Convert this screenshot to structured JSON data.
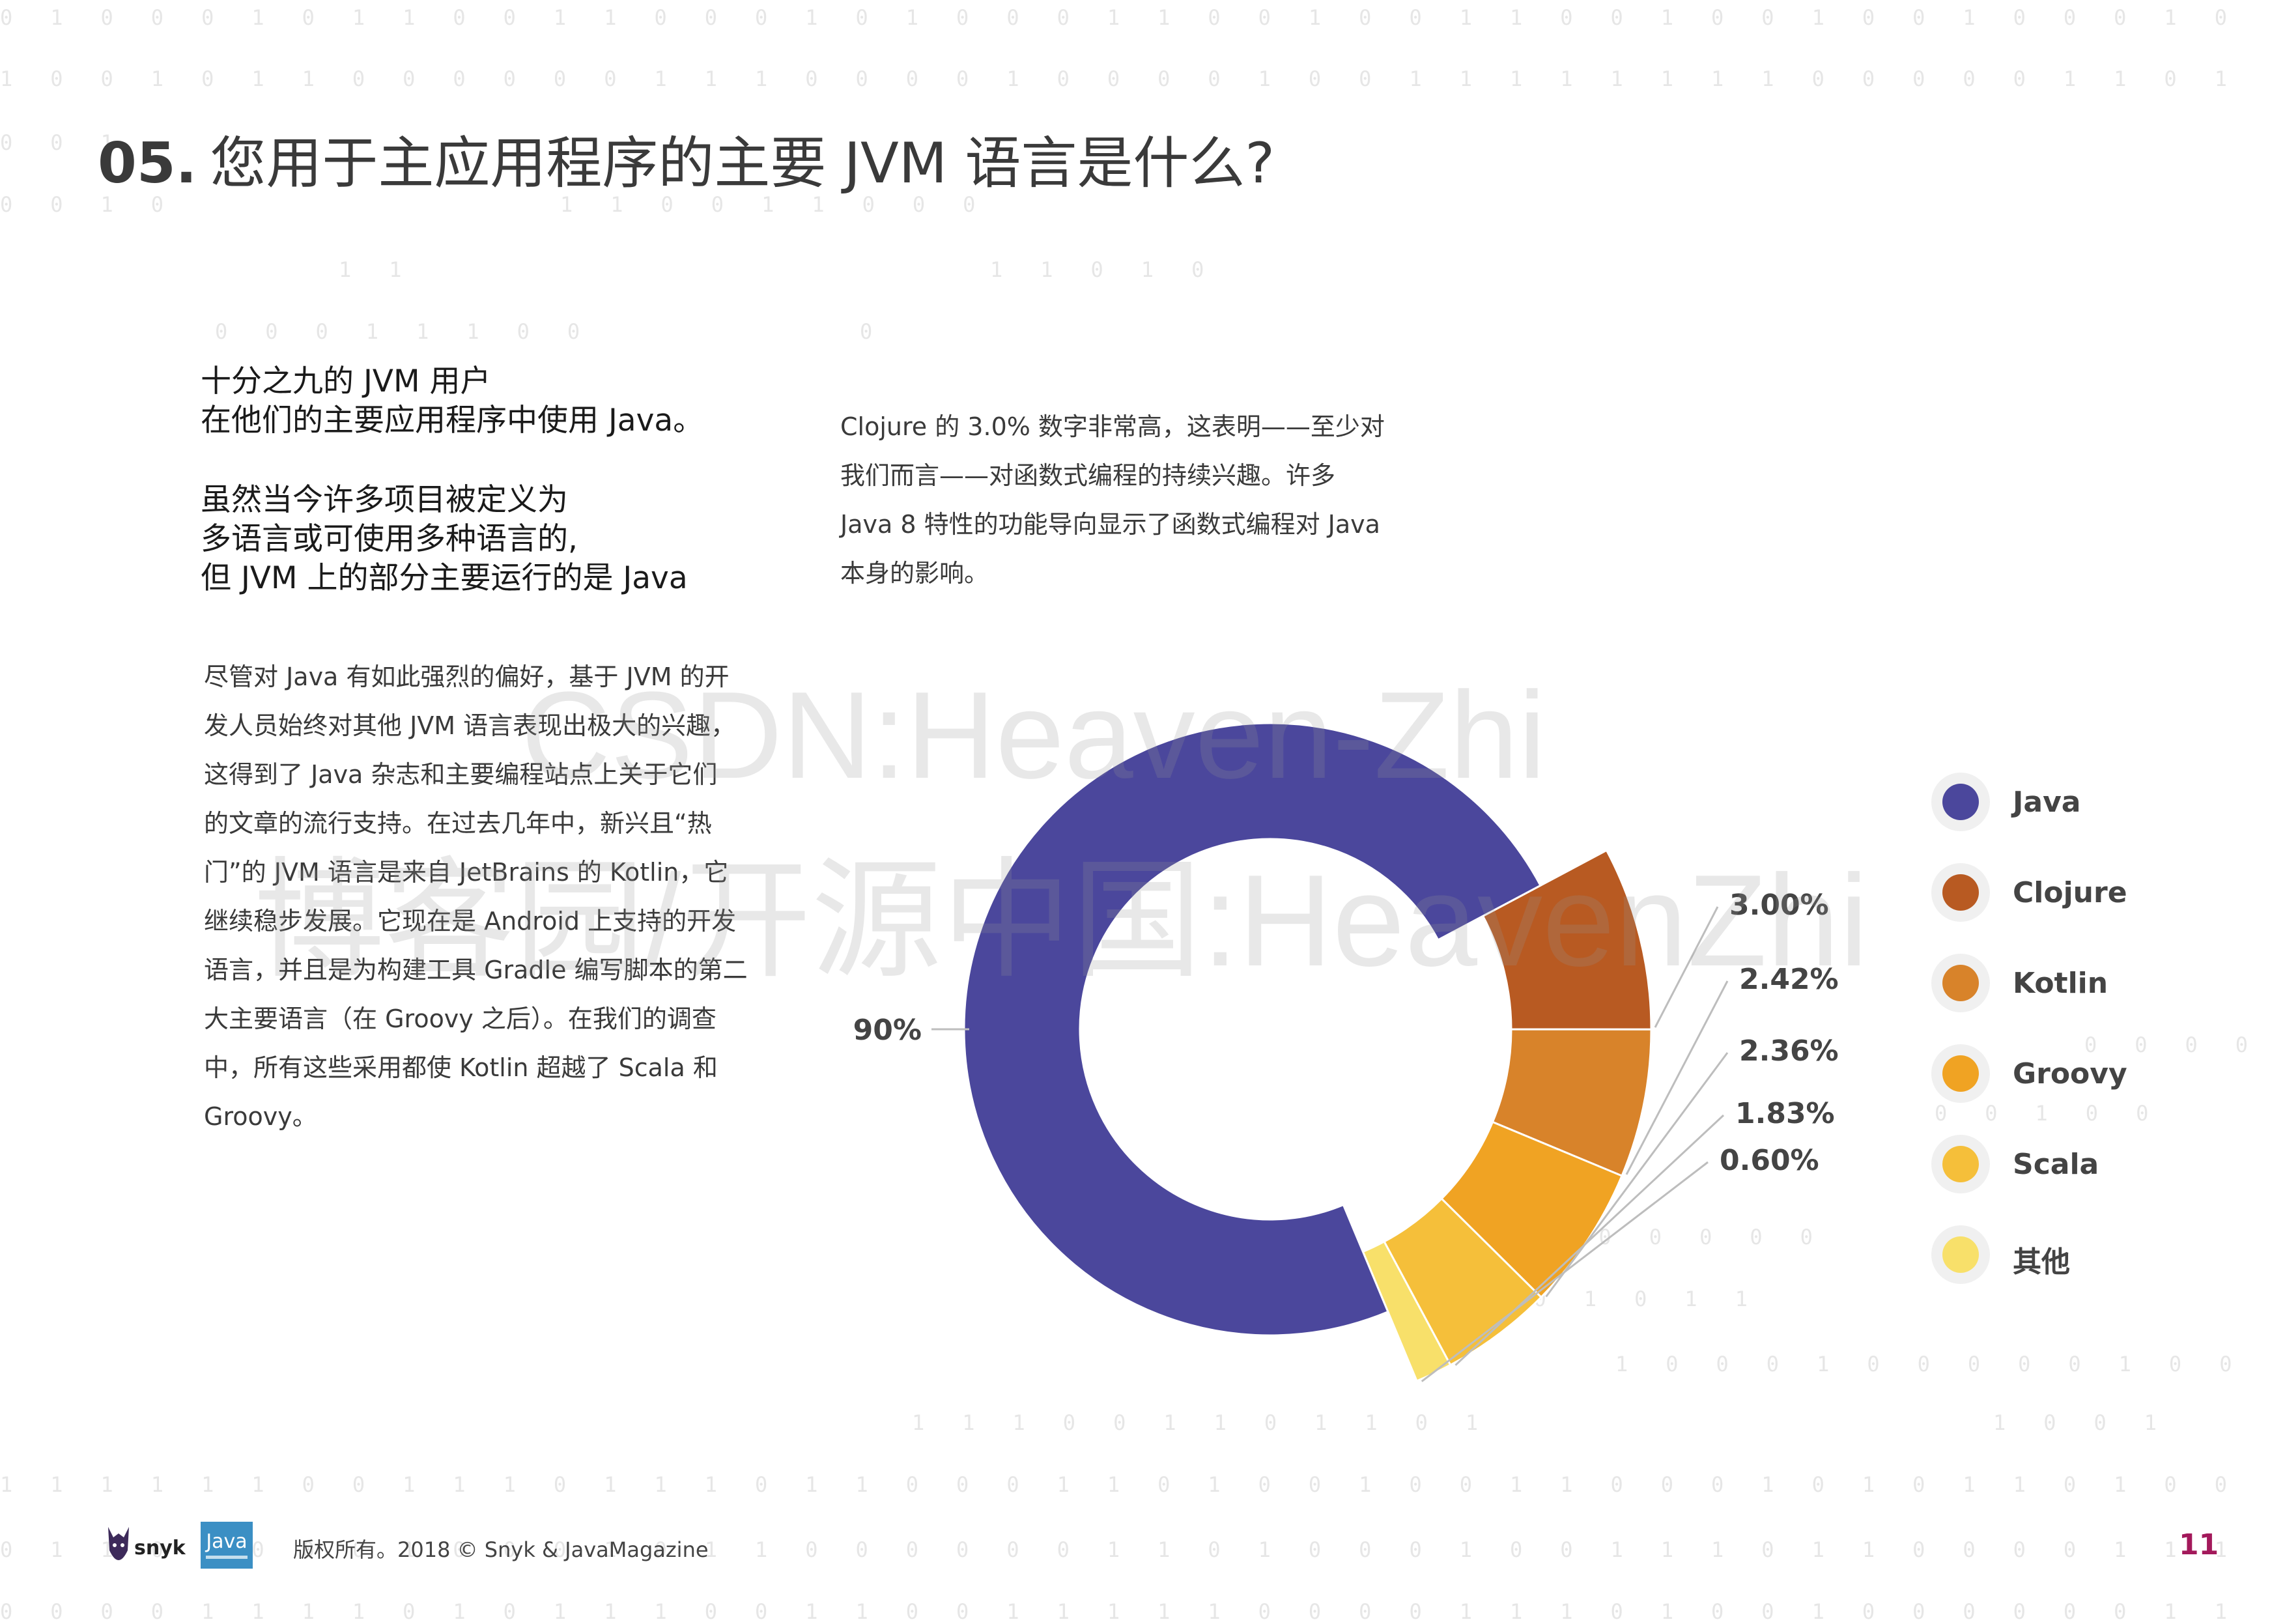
{
  "header": {
    "number": "05.",
    "title": "您用于主应用程序的主要 JVM 语言是什么?"
  },
  "lead": {
    "lines": [
      "十分之九的 JVM 用户",
      "在他们的主要应用程序中使用 Java。",
      "虽然当今许多项目被定义为",
      "多语言或可使用多种语言的,",
      "但 JVM 上的部分主要运行的是 Java"
    ]
  },
  "left_body": {
    "lines": [
      "尽管对 Java 有如此强烈的偏好，基于 JVM 的开",
      "发人员始终对其他 JVM 语言表现出极大的兴趣，",
      "这得到了 Java 杂志和主要编程站点上关于它们",
      "的文章的流行支持。在过去几年中，新兴且“热",
      "门”的 JVM 语言是来自 JetBrains 的 Kotlin，它",
      "继续稳步发展。它现在是 Android 上支持的开发",
      "语言，并且是为构建工具 Gradle 编写脚本的第二",
      "大主要语言（在 Groovy 之后）。在我们的调查",
      "中，所有这些采用都使 Kotlin 超越了 Scala 和",
      "Groovy。"
    ]
  },
  "right_body": {
    "lines": [
      "Clojure 的 3.0% 数字非常高，这表明——至少对",
      "我们而言——对函数式编程的持续兴趣。许多",
      "Java 8 特性的功能导向显示了函数式编程对 Java",
      "本身的影响。"
    ]
  },
  "chart_data": {
    "type": "pie",
    "style": "donut with exploded minor slices",
    "categories": [
      "Java",
      "Clojure",
      "Kotlin",
      "Groovy",
      "Scala",
      "其他"
    ],
    "values": [
      90,
      3.0,
      2.42,
      2.36,
      1.83,
      0.6
    ],
    "data_labels": [
      "90%",
      "3.00%",
      "2.42%",
      "2.36%",
      "1.83%",
      "0.60%"
    ],
    "colors": [
      "#4b479c",
      "#b85a22",
      "#d8832a",
      "#f0a323",
      "#f5bf3a",
      "#f8e06a"
    ],
    "legend": {
      "position": "right",
      "entries": [
        "Java",
        "Clojure",
        "Kotlin",
        "Groovy",
        "Scala",
        "其他"
      ]
    }
  },
  "watermarks": [
    "CSDN:Heaven-Zhi",
    "博客园/开源中国:HeavenZhi"
  ],
  "footer": {
    "logo_text": "snyk",
    "logo_badge": "Java",
    "copyright": "版权所有。2018 © Snyk & JavaMagazine",
    "page_number": "11"
  },
  "colors": {
    "title": "#3a3a3a",
    "page_number": "#a3195b",
    "binary_digits": "#e6e6e6"
  }
}
